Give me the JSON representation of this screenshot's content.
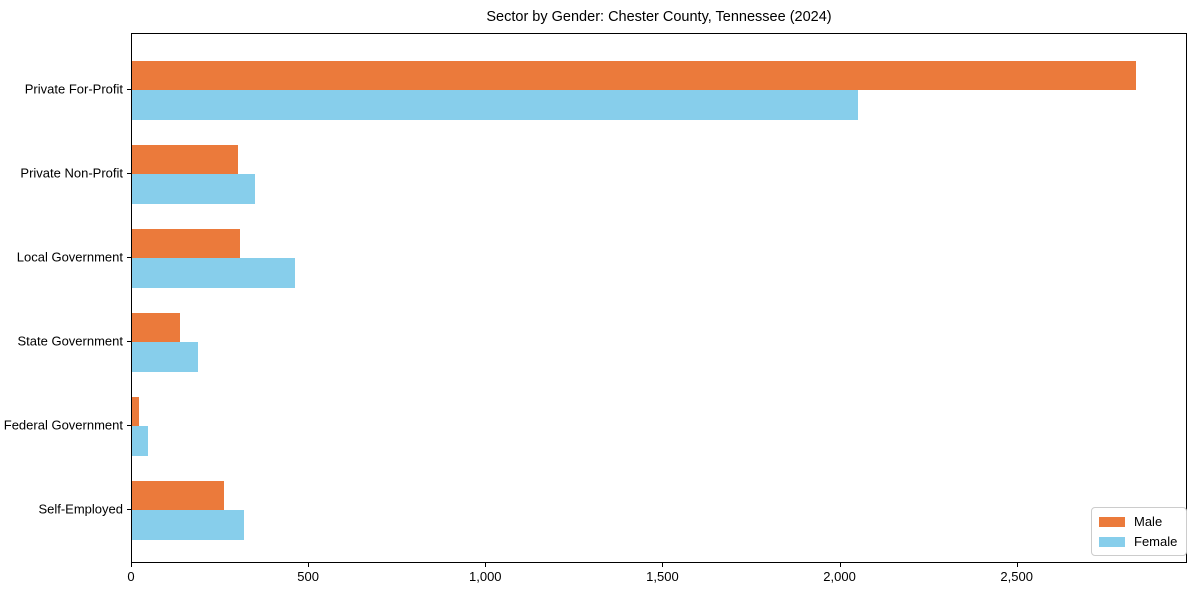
{
  "title": "Sector by Gender: Chester County, Tennessee (2024)",
  "colors": {
    "male": "#EB7A3B",
    "female": "#87CEEB",
    "spine": "#000000",
    "legend_border": "#cccccc",
    "background": "#ffffff",
    "text": "#000000"
  },
  "legend": {
    "position": "lower right",
    "entries": [
      "Male",
      "Female"
    ]
  },
  "chart_data": {
    "type": "bar",
    "orientation": "horizontal",
    "title": "Sector by Gender: Chester County, Tennessee (2024)",
    "xlabel": "",
    "ylabel": "",
    "grid": false,
    "categories": [
      "Private For-Profit",
      "Private Non-Profit",
      "Local Government",
      "State Government",
      "Federal Government",
      "Self-Employed"
    ],
    "series": [
      {
        "name": "Male",
        "color": "#EB7A3B",
        "values": [
          2835,
          300,
          305,
          135,
          20,
          260
        ]
      },
      {
        "name": "Female",
        "color": "#87CEEB",
        "values": [
          2050,
          348,
          460,
          185,
          45,
          315
        ]
      }
    ],
    "xlim": [
      0,
      2975
    ],
    "x_ticks": [
      {
        "value": 0,
        "label": "0"
      },
      {
        "value": 500,
        "label": "500"
      },
      {
        "value": 1000,
        "label": "1,000"
      },
      {
        "value": 1500,
        "label": "1,500"
      },
      {
        "value": 2000,
        "label": "2,000"
      },
      {
        "value": 2500,
        "label": "2,500"
      }
    ]
  }
}
